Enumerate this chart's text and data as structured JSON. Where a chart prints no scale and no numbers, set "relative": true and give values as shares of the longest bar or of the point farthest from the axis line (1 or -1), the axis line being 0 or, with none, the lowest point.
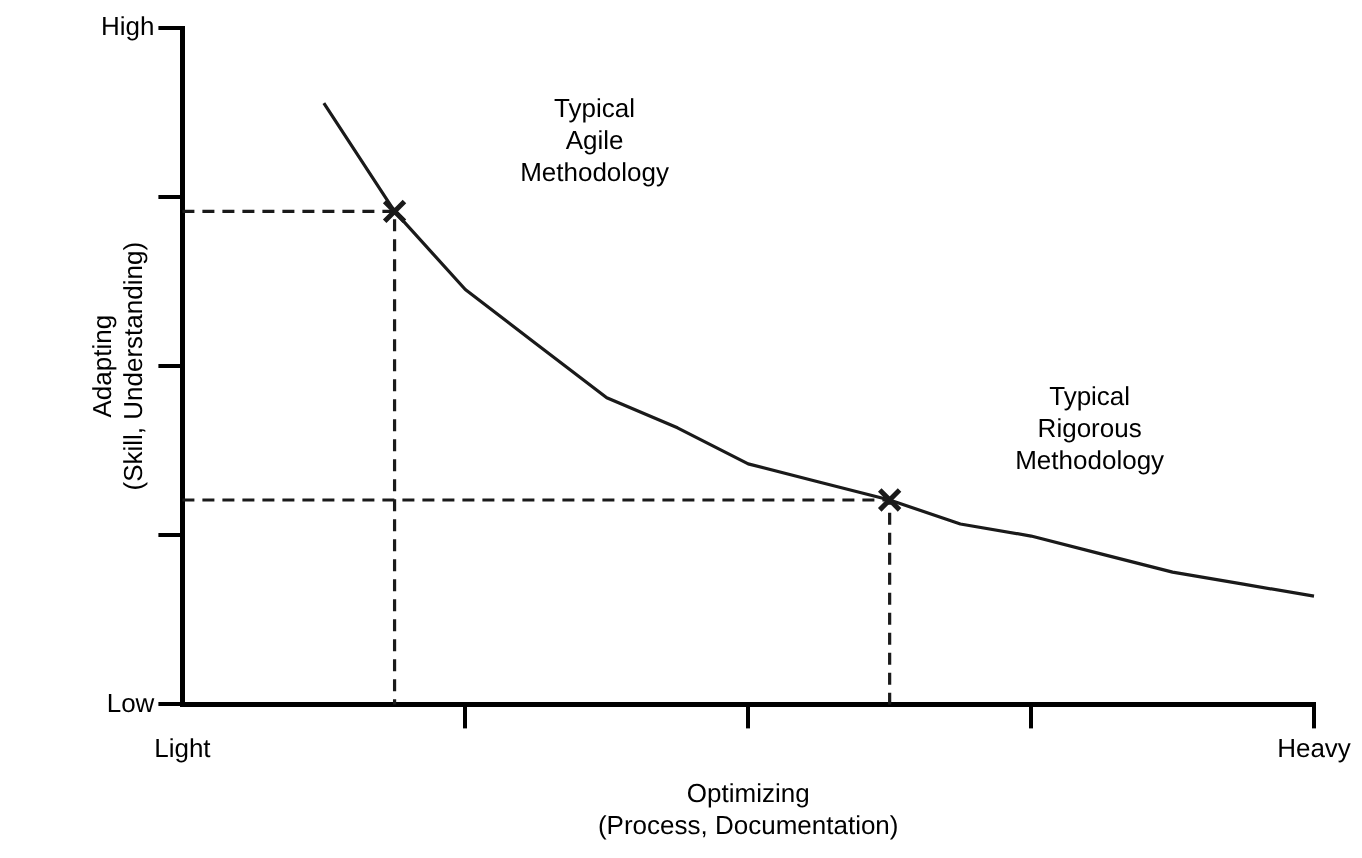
{
  "chart_data": {
    "type": "line",
    "relative": true,
    "xlabel": "Optimizing\n(Process, Documentation)",
    "ylabel": "Adapting\n(Skill, Understanding)",
    "categories": [
      "Light",
      null,
      null,
      null,
      null,
      null,
      null,
      null,
      null,
      null,
      null,
      null,
      null,
      null,
      null,
      null,
      "Heavy"
    ],
    "grid": false,
    "legend": false,
    "series": [
      {
        "color": "#1a1a1a",
        "line_style": "solid",
        "marker": "none",
        "values": [
          null,
          null,
          1,
          0.82,
          0.69,
          0.6,
          0.51,
          0.46,
          0.4,
          0.37,
          0.34,
          0.3,
          0.28,
          0.25,
          0.22,
          0.2,
          0.18
        ]
      },
      {
        "type": "scatter",
        "color": "#1a1a1a",
        "marker": "cross",
        "line_style": "dashed",
        "values": [
          null,
          null,
          null,
          0.82,
          null,
          null,
          null,
          null,
          null,
          null,
          0.34,
          null,
          null,
          null,
          null,
          null,
          null
        ]
      }
    ],
    "annotations": [
      "Typical\nAgile\nMethodology",
      "Typical\nRigorous\nMethodology",
      "High",
      "Low"
    ]
  }
}
